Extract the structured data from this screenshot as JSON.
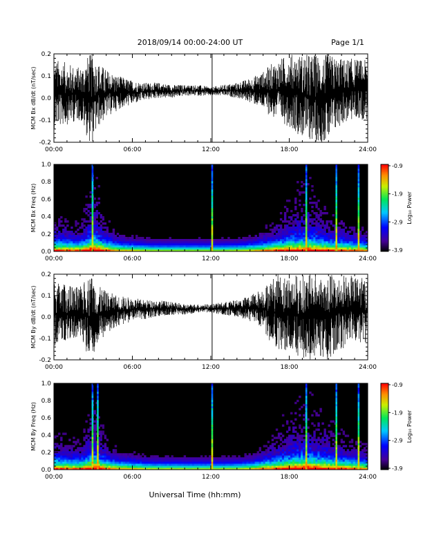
{
  "header": {
    "date_range": "2018/09/14  00:00-24:00 UT",
    "page": "Page 1/1"
  },
  "chart_data": [
    {
      "type": "line",
      "ylabel": "MCM Bx dB/dt (nT/sec)",
      "xlim": [
        0,
        24
      ],
      "ylim": [
        -0.2,
        0.2
      ],
      "x_tick_labels": [
        "00:00",
        "06:00",
        "12:00",
        "18:00",
        "24:00"
      ],
      "y_tick_labels": [
        "-0.2",
        "-0.1",
        "0.0",
        "0.1",
        "0.2"
      ],
      "envelope": {
        "hours": [
          0,
          1,
          2,
          2.7,
          3,
          3.3,
          4,
          5,
          6,
          7,
          8,
          9,
          10,
          11,
          12,
          13,
          14,
          15,
          16,
          16.5,
          17,
          18,
          19,
          20,
          21,
          22,
          23,
          24
        ],
        "upper": [
          0.18,
          0.16,
          0.14,
          0.2,
          0.2,
          0.17,
          0.13,
          0.1,
          0.08,
          0.07,
          0.07,
          0.06,
          0.06,
          0.06,
          0.05,
          0.06,
          0.07,
          0.09,
          0.12,
          0.15,
          0.17,
          0.2,
          0.2,
          0.2,
          0.2,
          0.18,
          0.18,
          0.17
        ],
        "lower": [
          -0.14,
          -0.12,
          -0.1,
          -0.2,
          -0.2,
          -0.14,
          -0.09,
          -0.05,
          -0.03,
          -0.01,
          0.0,
          0.0,
          0.01,
          0.01,
          0.01,
          0.01,
          0.0,
          -0.02,
          -0.05,
          -0.08,
          -0.1,
          -0.13,
          -0.18,
          -0.2,
          -0.2,
          -0.12,
          -0.1,
          -0.1
        ]
      }
    },
    {
      "type": "heatmap",
      "ylabel": "MCM Bx Freq (Hz)",
      "colorbar_label": "Log₁₀ Power",
      "colorbar_ticks": [
        "-0.9",
        "-1.9",
        "-2.9",
        "-3.9"
      ],
      "xlim": [
        0,
        24
      ],
      "ylim": [
        0,
        1.0
      ],
      "x_tick_labels": [
        "00:00",
        "06:00",
        "12:00",
        "18:00",
        "24:00"
      ],
      "y_tick_labels": [
        "0.0",
        "0.2",
        "0.4",
        "0.6",
        "0.8",
        "1.0"
      ],
      "activity": {
        "hours": [
          0,
          1,
          2,
          3,
          4,
          5,
          6,
          7,
          8,
          9,
          10,
          11,
          12,
          13,
          14,
          15,
          16,
          17,
          18,
          19,
          20,
          21,
          22,
          23,
          24
        ],
        "level": [
          0.6,
          0.55,
          0.5,
          0.9,
          0.55,
          0.3,
          0.25,
          0.15,
          0.1,
          0.1,
          0.1,
          0.1,
          0.1,
          0.1,
          0.15,
          0.25,
          0.4,
          0.55,
          0.7,
          0.8,
          0.75,
          0.6,
          0.55,
          0.45,
          0.4
        ]
      },
      "spikes": [
        2.95,
        12.1,
        19.3,
        21.6,
        23.3
      ]
    },
    {
      "type": "line",
      "ylabel": "MCM By dB/dt (nT/sec)",
      "xlim": [
        0,
        24
      ],
      "ylim": [
        -0.2,
        0.2
      ],
      "x_tick_labels": [
        "00:00",
        "06:00",
        "12:00",
        "18:00",
        "24:00"
      ],
      "y_tick_labels": [
        "-0.2",
        "-0.1",
        "0.0",
        "0.1",
        "0.2"
      ],
      "envelope": {
        "hours": [
          0,
          1,
          2,
          2.7,
          3,
          3.3,
          4,
          5,
          6,
          7,
          8,
          9,
          10,
          11,
          12,
          13,
          14,
          15,
          16,
          16.5,
          17,
          18,
          19,
          20,
          21,
          22,
          23,
          24
        ],
        "upper": [
          0.17,
          0.15,
          0.14,
          0.2,
          0.2,
          0.15,
          0.12,
          0.1,
          0.09,
          0.08,
          0.08,
          0.07,
          0.06,
          0.06,
          0.06,
          0.07,
          0.08,
          0.1,
          0.14,
          0.17,
          0.2,
          0.2,
          0.2,
          0.2,
          0.2,
          0.2,
          0.19,
          0.18
        ],
        "lower": [
          -0.14,
          -0.12,
          -0.11,
          -0.2,
          -0.2,
          -0.13,
          -0.08,
          -0.04,
          -0.02,
          -0.01,
          0.0,
          0.01,
          0.01,
          0.02,
          0.02,
          0.01,
          0.0,
          -0.02,
          -0.06,
          -0.12,
          -0.15,
          -0.18,
          -0.2,
          -0.2,
          -0.2,
          -0.15,
          -0.12,
          -0.12
        ]
      }
    },
    {
      "type": "heatmap",
      "ylabel": "MCM By Freq (Hz)",
      "colorbar_label": "Log₁₀ Power",
      "colorbar_ticks": [
        "-0.9",
        "-1.9",
        "-2.9",
        "-3.9"
      ],
      "xlim": [
        0,
        24
      ],
      "ylim": [
        0,
        1.0
      ],
      "x_tick_labels": [
        "00:00",
        "06:00",
        "12:00",
        "18:00",
        "24:00"
      ],
      "y_tick_labels": [
        "0.0",
        "0.2",
        "0.4",
        "0.6",
        "0.8",
        "1.0"
      ],
      "activity": {
        "hours": [
          0,
          1,
          2,
          3,
          4,
          5,
          6,
          7,
          8,
          9,
          10,
          11,
          12,
          13,
          14,
          15,
          16,
          17,
          18,
          19,
          20,
          21,
          22,
          23,
          24
        ],
        "level": [
          0.6,
          0.55,
          0.5,
          0.9,
          0.55,
          0.35,
          0.3,
          0.2,
          0.15,
          0.15,
          0.12,
          0.12,
          0.12,
          0.12,
          0.15,
          0.25,
          0.45,
          0.6,
          0.75,
          0.85,
          0.8,
          0.7,
          0.6,
          0.5,
          0.45
        ]
      },
      "spikes": [
        2.95,
        3.35,
        12.1,
        19.3,
        21.6,
        23.3
      ]
    }
  ],
  "xlabel": "Universal Time (hh:mm)",
  "colors": {
    "line": "#000000",
    "background": "#000000"
  }
}
